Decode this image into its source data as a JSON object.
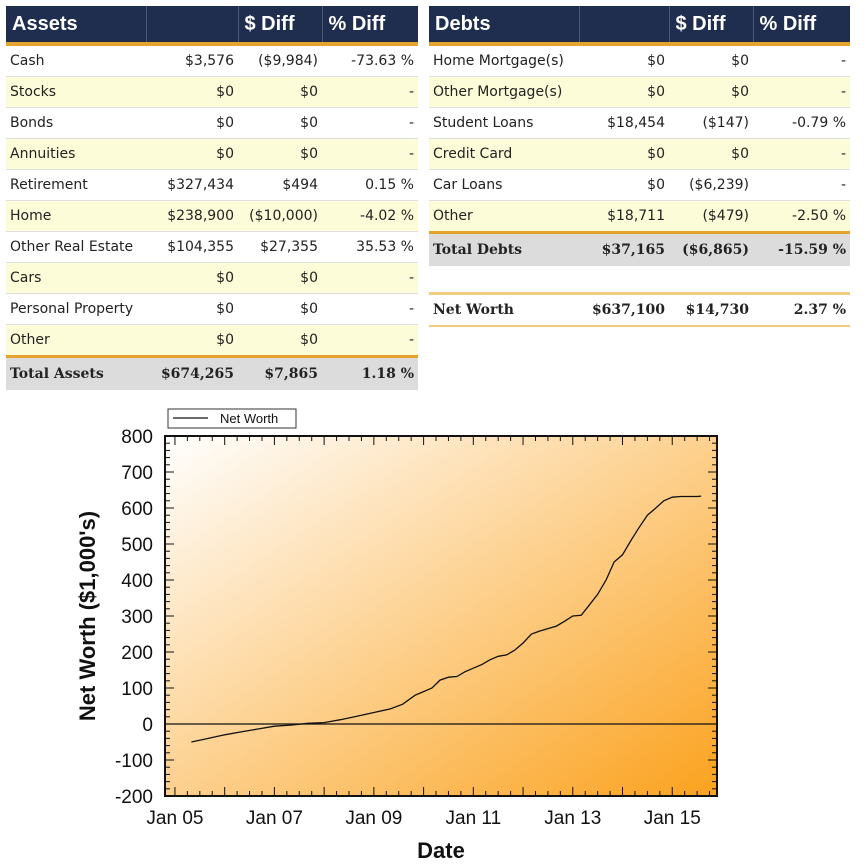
{
  "assets": {
    "headers": [
      "Assets",
      "$ Diff",
      "% Diff"
    ],
    "rows": [
      {
        "label": "Cash",
        "value": "$3,576",
        "diff": "($9,984)",
        "pct": "-73.63 %"
      },
      {
        "label": "Stocks",
        "value": "$0",
        "diff": "$0",
        "pct": "-"
      },
      {
        "label": "Bonds",
        "value": "$0",
        "diff": "$0",
        "pct": "-"
      },
      {
        "label": "Annuities",
        "value": "$0",
        "diff": "$0",
        "pct": "-"
      },
      {
        "label": "Retirement",
        "value": "$327,434",
        "diff": "$494",
        "pct": "0.15 %"
      },
      {
        "label": "Home",
        "value": "$238,900",
        "diff": "($10,000)",
        "pct": "-4.02 %"
      },
      {
        "label": "Other Real Estate",
        "value": "$104,355",
        "diff": "$27,355",
        "pct": "35.53 %"
      },
      {
        "label": "Cars",
        "value": "$0",
        "diff": "$0",
        "pct": "-"
      },
      {
        "label": "Personal Property",
        "value": "$0",
        "diff": "$0",
        "pct": "-"
      },
      {
        "label": "Other",
        "value": "$0",
        "diff": "$0",
        "pct": "-"
      }
    ],
    "total": {
      "label": "Total Assets",
      "value": "$674,265",
      "diff": "$7,865",
      "pct": "1.18 %"
    }
  },
  "debts": {
    "headers": [
      "Debts",
      "$ Diff",
      "% Diff"
    ],
    "rows": [
      {
        "label": "Home Mortgage(s)",
        "value": "$0",
        "diff": "$0",
        "pct": "-"
      },
      {
        "label": "Other Mortgage(s)",
        "value": "$0",
        "diff": "$0",
        "pct": "-"
      },
      {
        "label": "Student Loans",
        "value": "$18,454",
        "diff": "($147)",
        "pct": "-0.79 %"
      },
      {
        "label": "Credit Card",
        "value": "$0",
        "diff": "$0",
        "pct": "-"
      },
      {
        "label": "Car Loans",
        "value": "$0",
        "diff": "($6,239)",
        "pct": "-"
      },
      {
        "label": "Other",
        "value": "$18,711",
        "diff": "($479)",
        "pct": "-2.50 %"
      }
    ],
    "total": {
      "label": "Total Debts",
      "value": "$37,165",
      "diff": "($6,865)",
      "pct": "-15.59 %"
    },
    "net_worth": {
      "label": "Net Worth",
      "value": "$637,100",
      "diff": "$14,730",
      "pct": "2.37 %"
    }
  },
  "chart_data": {
    "type": "line",
    "title": "",
    "xlabel": "Date",
    "ylabel": "Net Worth ($1,000's)",
    "legend": [
      "Net Worth"
    ],
    "legend_position": "top-left",
    "ylim": [
      -200,
      800
    ],
    "yticks": [
      -200,
      -100,
      0,
      100,
      200,
      300,
      400,
      500,
      600,
      700,
      800
    ],
    "xlim": [
      2004.8,
      2015.9
    ],
    "xticks": [
      2005,
      2007,
      2009,
      2011,
      2013,
      2015
    ],
    "xtick_labels": [
      "Jan 05",
      "Jan 07",
      "Jan 09",
      "Jan 11",
      "Jan 13",
      "Jan 15"
    ],
    "colors": {
      "line": "#111111",
      "bg_light": "#ffffff",
      "bg_dark": "#fba21e"
    },
    "series": [
      {
        "name": "Net Worth",
        "x": [
          2005.33,
          2005.67,
          2006.0,
          2006.33,
          2006.67,
          2007.0,
          2007.33,
          2007.67,
          2008.0,
          2008.33,
          2008.67,
          2009.0,
          2009.33,
          2009.58,
          2009.83,
          2010.0,
          2010.17,
          2010.33,
          2010.5,
          2010.67,
          2010.83,
          2011.0,
          2011.17,
          2011.33,
          2011.5,
          2011.67,
          2011.83,
          2012.0,
          2012.17,
          2012.33,
          2012.5,
          2012.67,
          2012.83,
          2013.0,
          2013.17,
          2013.33,
          2013.5,
          2013.67,
          2013.83,
          2014.0,
          2014.17,
          2014.33,
          2014.5,
          2014.67,
          2014.83,
          2015.0,
          2015.17,
          2015.33,
          2015.5,
          2015.58
        ],
        "values": [
          -50,
          -40,
          -30,
          -22,
          -14,
          -6,
          -3,
          2,
          4,
          12,
          22,
          32,
          42,
          55,
          80,
          90,
          100,
          122,
          130,
          132,
          145,
          155,
          165,
          178,
          188,
          192,
          205,
          225,
          250,
          258,
          265,
          272,
          285,
          300,
          302,
          330,
          360,
          400,
          450,
          470,
          510,
          545,
          580,
          600,
          620,
          630,
          632,
          632,
          632,
          633
        ]
      }
    ]
  }
}
